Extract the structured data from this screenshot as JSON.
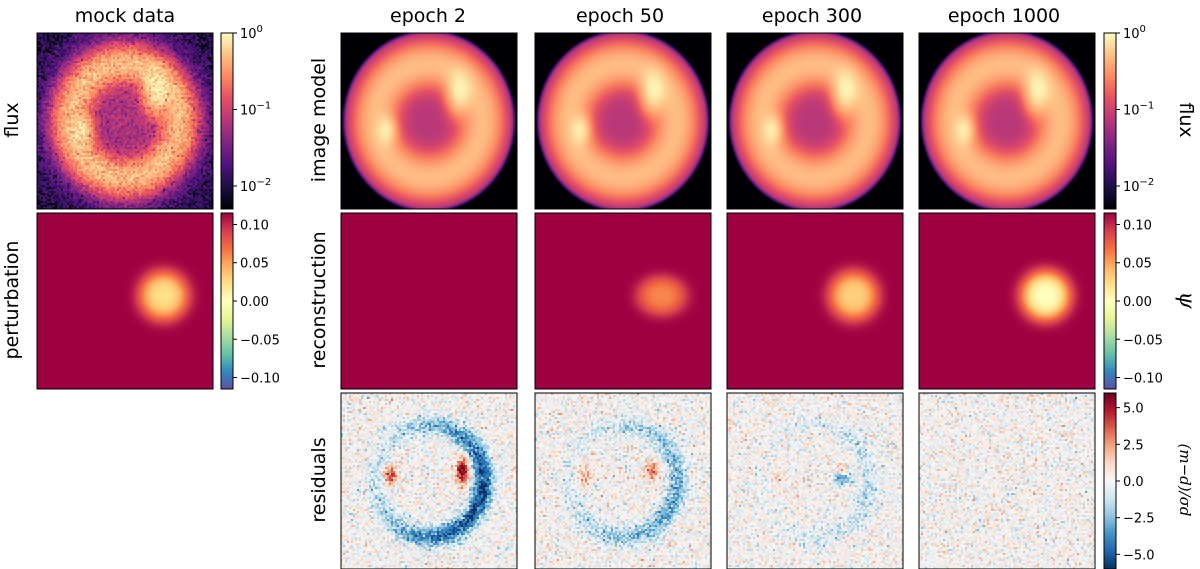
{
  "chart_data": {
    "type": "heatmap",
    "column_titles": [
      "mock data",
      "epoch 2",
      "epoch 50",
      "epoch 300",
      "epoch 1000"
    ],
    "row_labels": {
      "flux_left": "flux",
      "perturbation": "perturbation",
      "image_model": "image model",
      "reconstruction": "reconstruction",
      "residuals": "residuals"
    },
    "colorbars": {
      "flux": {
        "label": "flux",
        "scale": "log",
        "range": [
          0.005,
          1
        ],
        "ticks": [
          {
            "value": 1,
            "label": "10^0"
          },
          {
            "value": 0.1,
            "label": "10^-1"
          },
          {
            "value": 0.01,
            "label": "10^-2"
          }
        ],
        "colormap": "magma"
      },
      "psi": {
        "label": "ψ",
        "scale": "linear",
        "range": [
          -0.115,
          0.115
        ],
        "ticks": [
          "0.10",
          "0.05",
          "0.00",
          "−0.05",
          "−0.10"
        ],
        "colormap": "Spectral"
      },
      "residual": {
        "label": "(m−d)/σd",
        "scale": "linear",
        "range": [
          -6,
          6
        ],
        "ticks": [
          "5.0",
          "2.5",
          "0.0",
          "−2.5",
          "−5.0"
        ],
        "colormap": "RdBu"
      }
    },
    "panels": {
      "mock_data": {
        "ring_radius": 0.35,
        "noise": "high",
        "arc_brightness": 0.95
      },
      "perturbation_true": {
        "blob_x": 0.72,
        "blob_y": 0.47,
        "blob_r": 0.14,
        "amplitude": 0.04,
        "background": 0.115
      },
      "reconstructions": [
        {
          "epoch": 2,
          "amplitude": 0.115
        },
        {
          "epoch": 50,
          "amplitude": 0.055
        },
        {
          "epoch": 300,
          "amplitude": 0.03
        },
        {
          "epoch": 1000,
          "amplitude": 0.03
        }
      ],
      "residual_strength": [
        1.0,
        0.55,
        0.25,
        0.0
      ]
    }
  }
}
